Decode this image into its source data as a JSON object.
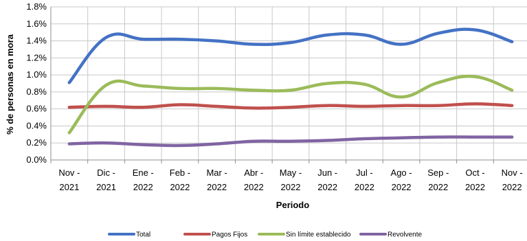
{
  "chart_data": {
    "type": "line",
    "xlabel": "Periodo",
    "ylabel": "% de personas en mora",
    "ylim": [
      0,
      1.8
    ],
    "yticks": [
      "0.0%",
      "0.2%",
      "0.4%",
      "0.6%",
      "0.8%",
      "1.0%",
      "1.2%",
      "1.4%",
      "1.6%",
      "1.8%"
    ],
    "categories": [
      {
        "month": "Nov -",
        "year": "2021"
      },
      {
        "month": "Dic -",
        "year": "2021"
      },
      {
        "month": "Ene -",
        "year": "2022"
      },
      {
        "month": "Feb -",
        "year": "2022"
      },
      {
        "month": "Mar -",
        "year": "2022"
      },
      {
        "month": "Abr -",
        "year": "2022"
      },
      {
        "month": "May -",
        "year": "2022"
      },
      {
        "month": "Jun -",
        "year": "2022"
      },
      {
        "month": "Jul -",
        "year": "2022"
      },
      {
        "month": "Ago -",
        "year": "2022"
      },
      {
        "month": "Sep -",
        "year": "2022"
      },
      {
        "month": "Oct -",
        "year": "2022"
      },
      {
        "month": "Nov -",
        "year": "2022"
      }
    ],
    "grid": true,
    "legend_position": "bottom",
    "series": [
      {
        "name": "Total",
        "color": "#4472C4",
        "values": [
          0.91,
          1.44,
          1.42,
          1.42,
          1.4,
          1.36,
          1.38,
          1.47,
          1.47,
          1.36,
          1.49,
          1.53,
          1.39
        ]
      },
      {
        "name": "Pagos Fijos",
        "color": "#C0504D",
        "values": [
          0.62,
          0.63,
          0.62,
          0.65,
          0.63,
          0.61,
          0.62,
          0.64,
          0.63,
          0.64,
          0.64,
          0.66,
          0.64
        ]
      },
      {
        "name": "Sin límite establecido",
        "color": "#9BBB59",
        "values": [
          0.32,
          0.88,
          0.87,
          0.84,
          0.84,
          0.82,
          0.82,
          0.9,
          0.89,
          0.74,
          0.91,
          0.98,
          0.82
        ]
      },
      {
        "name": "Revolvente",
        "color": "#8064A2",
        "values": [
          0.19,
          0.2,
          0.18,
          0.17,
          0.19,
          0.22,
          0.22,
          0.23,
          0.25,
          0.26,
          0.27,
          0.27,
          0.27
        ]
      }
    ]
  }
}
